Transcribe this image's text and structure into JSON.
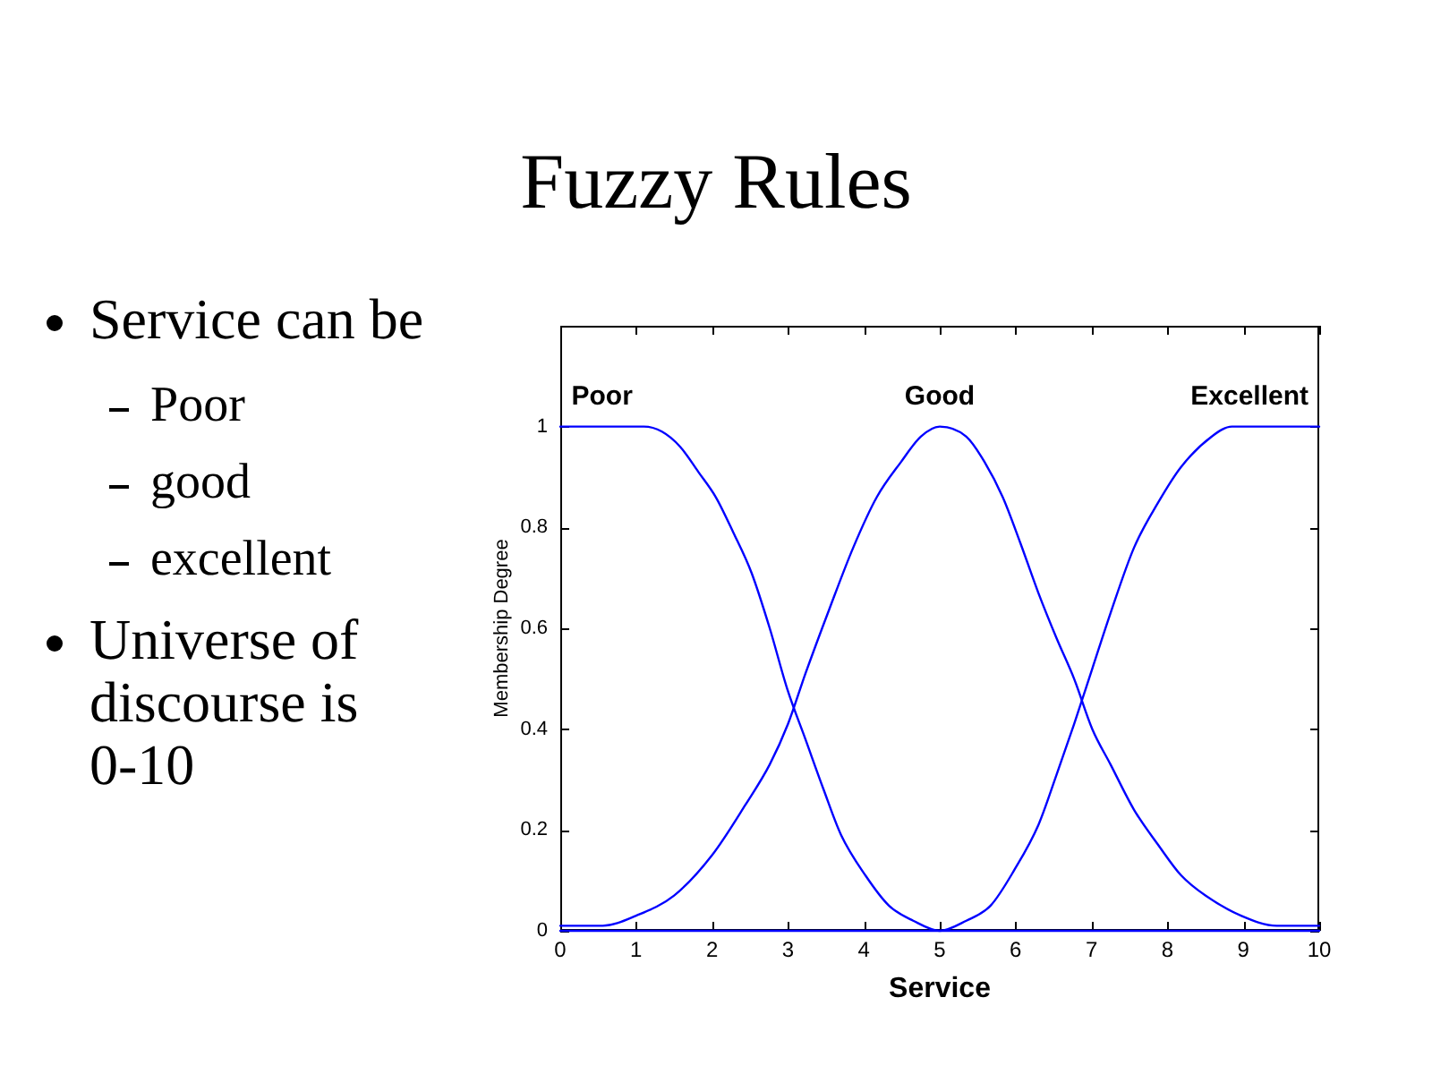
{
  "chart_data": {
    "type": "line",
    "title": "Fuzzy Rules",
    "annotations": [
      "Service can be",
      "Poor",
      "good",
      "excellent",
      "Universe of discourse is 0-10"
    ],
    "xlabel": "Service",
    "ylabel": "Membership Degree",
    "xlim": [
      0,
      10
    ],
    "xticks": [
      0,
      1,
      2,
      3,
      4,
      5,
      6,
      7,
      8,
      9,
      10
    ],
    "ylim": [
      0,
      1.2
    ],
    "yticks": [
      0,
      0.2,
      0.4,
      0.6,
      0.8,
      1
    ],
    "grid": false,
    "legend": false,
    "marker": "none",
    "line_style": "solid",
    "series": [
      {
        "name": "Poor",
        "color": "#0000ff",
        "x": [
          0,
          0.5,
          1,
          1.1,
          1.34,
          1.58,
          1.82,
          2.05,
          2.28,
          2.52,
          2.76,
          2.99,
          3.23,
          3.47,
          3.7,
          4.02,
          4.33,
          4.65,
          5,
          6,
          7,
          8,
          9,
          10
        ],
        "values": [
          1,
          1,
          1,
          1,
          0.99,
          0.96,
          0.91,
          0.86,
          0.79,
          0.71,
          0.6,
          0.48,
          0.38,
          0.28,
          0.19,
          0.11,
          0.05,
          0.02,
          0,
          0,
          0,
          0,
          0,
          0
        ]
      },
      {
        "name": "Good",
        "color": "#0000ff",
        "x": [
          0,
          0.56,
          1,
          1.5,
          2,
          2.44,
          2.76,
          3,
          3.23,
          3.55,
          3.86,
          4.17,
          4.49,
          4.75,
          5,
          5.35,
          5.59,
          5.83,
          6.06,
          6.3,
          6.54,
          6.77,
          7.01,
          7.25,
          7.56,
          7.88,
          8.18,
          8.5,
          8.97,
          9.44,
          10
        ],
        "values": [
          0.01,
          0.01,
          0.03,
          0.07,
          0.15,
          0.25,
          0.33,
          0.41,
          0.51,
          0.64,
          0.76,
          0.86,
          0.93,
          0.98,
          1,
          0.98,
          0.93,
          0.86,
          0.77,
          0.67,
          0.58,
          0.5,
          0.4,
          0.33,
          0.24,
          0.17,
          0.11,
          0.07,
          0.03,
          0.01,
          0.01
        ]
      },
      {
        "name": "Excellent",
        "color": "#0000ff",
        "x": [
          0,
          1,
          2,
          3,
          4,
          5,
          5.35,
          5.67,
          5.98,
          6.3,
          6.54,
          6.77,
          7.01,
          7.25,
          7.56,
          7.88,
          8.18,
          8.58,
          8.85,
          9.5,
          10
        ],
        "values": [
          0,
          0,
          0,
          0,
          0,
          0,
          0.02,
          0.05,
          0.12,
          0.21,
          0.31,
          0.41,
          0.52,
          0.63,
          0.76,
          0.85,
          0.92,
          0.98,
          1,
          1,
          1
        ]
      }
    ]
  }
}
